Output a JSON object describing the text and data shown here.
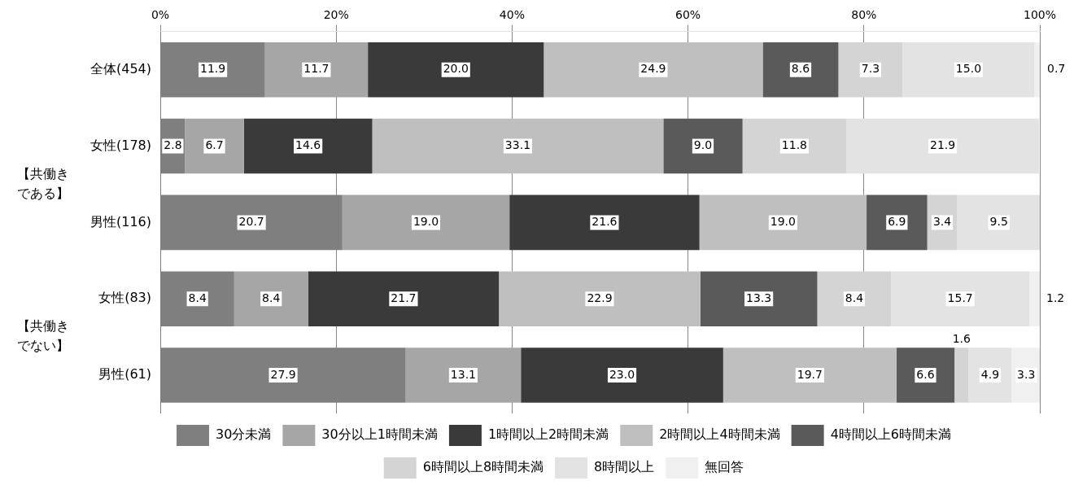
{
  "chart_data": {
    "type": "bar",
    "orientation": "horizontal",
    "stacked": true,
    "categories": [
      "全体(454)",
      "女性(178)",
      "男性(116)",
      "女性(83)",
      "男性(61)"
    ],
    "annotations": [
      "【共働きである】",
      "【共働きでない】"
    ],
    "xlim": [
      0,
      100
    ],
    "xticks": [
      {
        "value": 0,
        "label": "0%"
      },
      {
        "value": 20,
        "label": "20%"
      },
      {
        "value": 40,
        "label": "40%"
      },
      {
        "value": 60,
        "label": "60%"
      },
      {
        "value": 80,
        "label": "80%"
      },
      {
        "value": 100,
        "label": "100%"
      }
    ],
    "grid": "x",
    "legend": "bottom",
    "series": [
      {
        "name": "30分未満",
        "color": "#7f7f7f",
        "values": [
          11.9,
          2.8,
          20.7,
          8.4,
          27.9
        ],
        "value_labels": [
          "11.9",
          "2.8",
          "20.7",
          "8.4",
          "27.9"
        ]
      },
      {
        "name": "30分以上1時間未満",
        "color": "#a6a6a6",
        "values": [
          11.7,
          6.7,
          19.0,
          8.4,
          13.1
        ],
        "value_labels": [
          "11.7",
          "6.7",
          "19.0",
          "8.4",
          "13.1"
        ]
      },
      {
        "name": "1時間以上2時間未満",
        "color": "#3a3a3a",
        "values": [
          20.0,
          14.6,
          21.6,
          21.7,
          23.0
        ],
        "value_labels": [
          "20.0",
          "14.6",
          "21.6",
          "21.7",
          "23.0"
        ]
      },
      {
        "name": "2時間以上4時間未満",
        "color": "#bfbfbf",
        "values": [
          24.9,
          33.1,
          19.0,
          22.9,
          19.7
        ],
        "value_labels": [
          "24.9",
          "33.1",
          "19.0",
          "22.9",
          "19.7"
        ]
      },
      {
        "name": "4時間以上6時間未満",
        "color": "#5a5a5a",
        "values": [
          8.6,
          9.0,
          6.9,
          13.3,
          6.6
        ],
        "value_labels": [
          "8.6",
          "9.0",
          "6.9",
          "13.3",
          "6.6"
        ]
      },
      {
        "name": "6時間以上8時間未満",
        "color": "#d4d4d4",
        "values": [
          7.3,
          11.8,
          3.4,
          8.4,
          1.6
        ],
        "value_labels": [
          "7.3",
          "11.8",
          "3.4",
          "8.4",
          "1.6"
        ]
      },
      {
        "name": "8時間以上",
        "color": "#e3e3e3",
        "values": [
          15.0,
          21.9,
          9.5,
          15.7,
          4.9
        ],
        "value_labels": [
          "15.0",
          "21.9",
          "9.5",
          "15.7",
          "4.9"
        ]
      },
      {
        "name": "無回答",
        "color": "#f0f0f0",
        "values": [
          0.7,
          null,
          null,
          1.2,
          3.3
        ],
        "value_labels": [
          "0.7",
          null,
          null,
          "1.2",
          "3.3"
        ]
      }
    ]
  }
}
